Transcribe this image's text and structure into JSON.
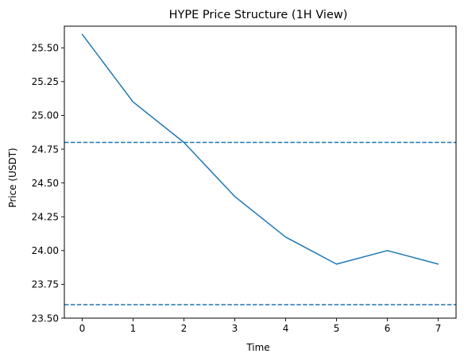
{
  "chart_data": {
    "type": "line",
    "title": "HYPE Price Structure (1H View)",
    "xlabel": "Time",
    "ylabel": "Price (USDT)",
    "x": [
      0,
      1,
      2,
      3,
      4,
      5,
      6,
      7
    ],
    "series": [
      {
        "values": [
          25.6,
          25.1,
          24.8,
          24.4,
          24.1,
          23.9,
          24.0,
          23.9
        ],
        "color": "#1f77b4"
      }
    ],
    "reference_lines": [
      {
        "y": 24.8,
        "style": "dashed",
        "color": "#1f77b4"
      },
      {
        "y": 23.6,
        "style": "dashed",
        "color": "#1f77b4"
      }
    ],
    "xlim": [
      -0.35,
      7.35
    ],
    "ylim": [
      23.5,
      25.66
    ],
    "xticks": [
      0,
      1,
      2,
      3,
      4,
      5,
      6,
      7
    ],
    "xtick_labels": [
      "0",
      "1",
      "2",
      "3",
      "4",
      "5",
      "6",
      "7"
    ],
    "yticks": [
      23.5,
      23.75,
      24.0,
      24.25,
      24.5,
      24.75,
      25.0,
      25.25,
      25.5
    ],
    "ytick_labels": [
      "23.50",
      "23.75",
      "24.00",
      "24.25",
      "24.50",
      "24.75",
      "25.00",
      "25.25",
      "25.50"
    ],
    "grid": false,
    "legend": false
  }
}
